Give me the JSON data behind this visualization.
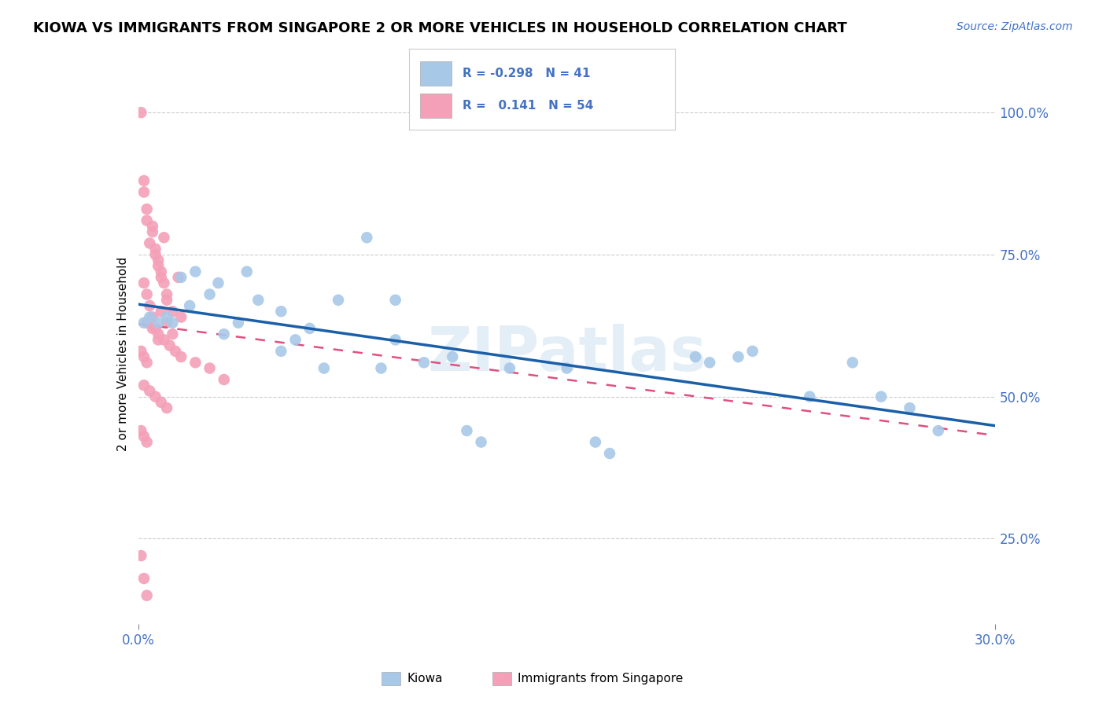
{
  "title": "KIOWA VS IMMIGRANTS FROM SINGAPORE 2 OR MORE VEHICLES IN HOUSEHOLD CORRELATION CHART",
  "source": "Source: ZipAtlas.com",
  "ylabel": "2 or more Vehicles in Household",
  "xlim": [
    0.0,
    0.3
  ],
  "ylim": [
    0.1,
    1.05
  ],
  "xticks": [
    0.0,
    0.3
  ],
  "xticklabels": [
    "0.0%",
    "30.0%"
  ],
  "yticks": [
    0.25,
    0.5,
    0.75,
    1.0
  ],
  "yticklabels_right": [
    "25.0%",
    "50.0%",
    "75.0%",
    "100.0%"
  ],
  "legend1_R": "-0.298",
  "legend1_N": "41",
  "legend2_R": "0.141",
  "legend2_N": "54",
  "watermark": "ZIPatlas",
  "blue_color": "#a8c8e8",
  "pink_color": "#f4a0b8",
  "blue_line_color": "#1a5fa8",
  "pink_line_color": "#e05080",
  "grid_color": "#cccccc",
  "tick_color": "#4472c4",
  "kiowa_x": [
    0.002,
    0.004,
    0.007,
    0.01,
    0.012,
    0.015,
    0.018,
    0.02,
    0.025,
    0.028,
    0.03,
    0.035,
    0.038,
    0.042,
    0.05,
    0.055,
    0.06,
    0.065,
    0.08,
    0.085,
    0.09,
    0.1,
    0.11,
    0.12,
    0.13,
    0.15,
    0.16,
    0.165,
    0.195,
    0.2,
    0.21,
    0.215,
    0.235,
    0.25,
    0.26,
    0.27,
    0.28,
    0.05,
    0.07,
    0.09,
    0.115
  ],
  "kiowa_y": [
    0.63,
    0.64,
    0.63,
    0.64,
    0.63,
    0.71,
    0.66,
    0.72,
    0.68,
    0.7,
    0.61,
    0.63,
    0.72,
    0.67,
    0.65,
    0.6,
    0.62,
    0.55,
    0.78,
    0.55,
    0.67,
    0.56,
    0.57,
    0.42,
    0.55,
    0.55,
    0.42,
    0.4,
    0.57,
    0.56,
    0.57,
    0.58,
    0.5,
    0.56,
    0.5,
    0.48,
    0.44,
    0.58,
    0.67,
    0.6,
    0.44
  ],
  "singapore_x": [
    0.001,
    0.002,
    0.003,
    0.004,
    0.005,
    0.006,
    0.007,
    0.008,
    0.009,
    0.01,
    0.002,
    0.003,
    0.005,
    0.006,
    0.007,
    0.008,
    0.009,
    0.01,
    0.012,
    0.014,
    0.002,
    0.003,
    0.004,
    0.005,
    0.006,
    0.007,
    0.008,
    0.01,
    0.012,
    0.015,
    0.003,
    0.005,
    0.007,
    0.009,
    0.011,
    0.013,
    0.015,
    0.02,
    0.025,
    0.03,
    0.002,
    0.004,
    0.006,
    0.008,
    0.01,
    0.001,
    0.002,
    0.003,
    0.001,
    0.002,
    0.003,
    0.001,
    0.002,
    0.003
  ],
  "singapore_y": [
    1.0,
    0.88,
    0.83,
    0.77,
    0.8,
    0.76,
    0.74,
    0.72,
    0.78,
    0.68,
    0.86,
    0.81,
    0.79,
    0.75,
    0.73,
    0.71,
    0.7,
    0.67,
    0.65,
    0.71,
    0.7,
    0.68,
    0.66,
    0.64,
    0.62,
    0.6,
    0.65,
    0.63,
    0.61,
    0.64,
    0.63,
    0.62,
    0.61,
    0.6,
    0.59,
    0.58,
    0.57,
    0.56,
    0.55,
    0.53,
    0.52,
    0.51,
    0.5,
    0.49,
    0.48,
    0.44,
    0.43,
    0.42,
    0.22,
    0.18,
    0.15,
    0.58,
    0.57,
    0.56
  ]
}
